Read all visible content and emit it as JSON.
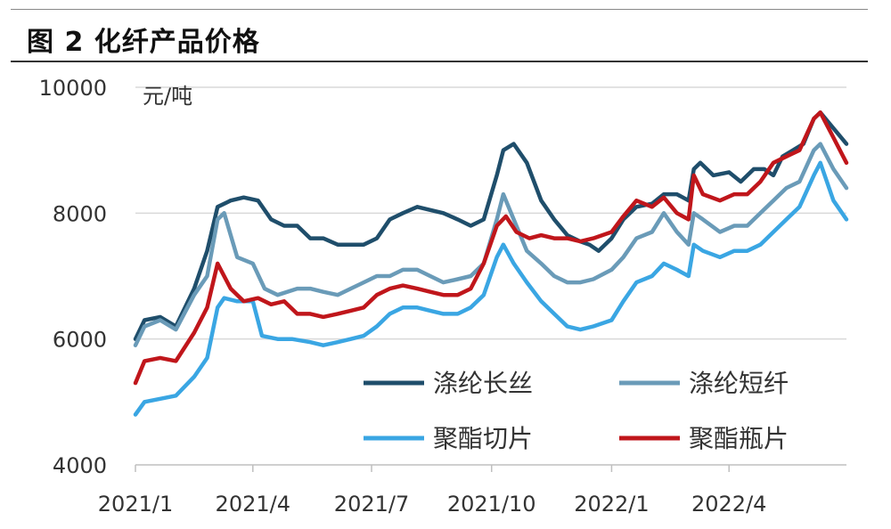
{
  "figure": {
    "title": "图 2  化纤产品价格"
  },
  "chart_data": {
    "type": "line",
    "title": "",
    "xlabel": "",
    "ylabel": "元/吨",
    "ylim": [
      4000,
      10000
    ],
    "yticks": [
      4000,
      6000,
      8000,
      10000
    ],
    "x_range": [
      "2021-01-01",
      "2022-06-30"
    ],
    "xticks": [
      {
        "date": "2021-01-01",
        "label": "2021/1"
      },
      {
        "date": "2021-04-01",
        "label": "2021/4"
      },
      {
        "date": "2021-07-01",
        "label": "2021/7"
      },
      {
        "date": "2021-10-01",
        "label": "2021/10"
      },
      {
        "date": "2022-01-01",
        "label": "2022/1"
      },
      {
        "date": "2022-04-01",
        "label": "2022/4"
      }
    ],
    "grid": true,
    "legend_position": "bottom-right",
    "series": [
      {
        "name": "涤纶长丝",
        "color": "#1f4e6b",
        "points": [
          [
            "2021-01-01",
            6000
          ],
          [
            "2021-01-08",
            6300
          ],
          [
            "2021-01-20",
            6350
          ],
          [
            "2021-02-01",
            6200
          ],
          [
            "2021-02-15",
            6800
          ],
          [
            "2021-02-25",
            7400
          ],
          [
            "2021-03-05",
            8100
          ],
          [
            "2021-03-15",
            8200
          ],
          [
            "2021-03-25",
            8250
          ],
          [
            "2021-04-05",
            8200
          ],
          [
            "2021-04-15",
            7900
          ],
          [
            "2021-04-25",
            7800
          ],
          [
            "2021-05-05",
            7800
          ],
          [
            "2021-05-15",
            7600
          ],
          [
            "2021-05-25",
            7600
          ],
          [
            "2021-06-05",
            7500
          ],
          [
            "2021-06-15",
            7500
          ],
          [
            "2021-06-25",
            7500
          ],
          [
            "2021-07-05",
            7600
          ],
          [
            "2021-07-15",
            7900
          ],
          [
            "2021-07-25",
            8000
          ],
          [
            "2021-08-05",
            8100
          ],
          [
            "2021-08-15",
            8050
          ],
          [
            "2021-08-25",
            8000
          ],
          [
            "2021-09-05",
            7900
          ],
          [
            "2021-09-15",
            7800
          ],
          [
            "2021-09-25",
            7900
          ],
          [
            "2021-10-05",
            8600
          ],
          [
            "2021-10-10",
            9000
          ],
          [
            "2021-10-18",
            9100
          ],
          [
            "2021-10-28",
            8800
          ],
          [
            "2021-11-08",
            8200
          ],
          [
            "2021-11-18",
            7900
          ],
          [
            "2021-11-28",
            7650
          ],
          [
            "2021-12-08",
            7550
          ],
          [
            "2021-12-15",
            7500
          ],
          [
            "2021-12-22",
            7400
          ],
          [
            "2022-01-01",
            7600
          ],
          [
            "2022-01-10",
            7900
          ],
          [
            "2022-01-20",
            8100
          ],
          [
            "2022-02-01",
            8150
          ],
          [
            "2022-02-10",
            8300
          ],
          [
            "2022-02-20",
            8300
          ],
          [
            "2022-03-01",
            8200
          ],
          [
            "2022-03-05",
            8700
          ],
          [
            "2022-03-10",
            8800
          ],
          [
            "2022-03-20",
            8600
          ],
          [
            "2022-04-01",
            8650
          ],
          [
            "2022-04-10",
            8500
          ],
          [
            "2022-04-20",
            8700
          ],
          [
            "2022-04-28",
            8700
          ],
          [
            "2022-05-05",
            8600
          ],
          [
            "2022-05-12",
            8900
          ],
          [
            "2022-05-20",
            9000
          ],
          [
            "2022-05-28",
            9100
          ],
          [
            "2022-06-05",
            9500
          ],
          [
            "2022-06-10",
            9600
          ],
          [
            "2022-06-18",
            9400
          ],
          [
            "2022-06-30",
            9100
          ]
        ]
      },
      {
        "name": "涤纶短纤",
        "color": "#6a9bb8",
        "points": [
          [
            "2021-01-01",
            5900
          ],
          [
            "2021-01-08",
            6200
          ],
          [
            "2021-01-20",
            6300
          ],
          [
            "2021-02-01",
            6150
          ],
          [
            "2021-02-15",
            6700
          ],
          [
            "2021-02-25",
            7000
          ],
          [
            "2021-03-05",
            7900
          ],
          [
            "2021-03-10",
            8000
          ],
          [
            "2021-03-20",
            7300
          ],
          [
            "2021-04-01",
            7200
          ],
          [
            "2021-04-10",
            6800
          ],
          [
            "2021-04-20",
            6700
          ],
          [
            "2021-05-05",
            6800
          ],
          [
            "2021-05-15",
            6800
          ],
          [
            "2021-05-25",
            6750
          ],
          [
            "2021-06-05",
            6700
          ],
          [
            "2021-06-15",
            6800
          ],
          [
            "2021-06-25",
            6900
          ],
          [
            "2021-07-05",
            7000
          ],
          [
            "2021-07-15",
            7000
          ],
          [
            "2021-07-25",
            7100
          ],
          [
            "2021-08-05",
            7100
          ],
          [
            "2021-08-15",
            7000
          ],
          [
            "2021-08-25",
            6900
          ],
          [
            "2021-09-05",
            6950
          ],
          [
            "2021-09-15",
            7000
          ],
          [
            "2021-09-25",
            7200
          ],
          [
            "2021-10-05",
            7900
          ],
          [
            "2021-10-10",
            8300
          ],
          [
            "2021-10-18",
            7900
          ],
          [
            "2021-10-28",
            7400
          ],
          [
            "2021-11-08",
            7200
          ],
          [
            "2021-11-18",
            7000
          ],
          [
            "2021-11-28",
            6900
          ],
          [
            "2021-12-08",
            6900
          ],
          [
            "2021-12-18",
            6950
          ],
          [
            "2022-01-01",
            7100
          ],
          [
            "2022-01-10",
            7300
          ],
          [
            "2022-01-20",
            7600
          ],
          [
            "2022-02-01",
            7700
          ],
          [
            "2022-02-10",
            8000
          ],
          [
            "2022-02-20",
            7700
          ],
          [
            "2022-03-01",
            7500
          ],
          [
            "2022-03-05",
            8000
          ],
          [
            "2022-03-12",
            7900
          ],
          [
            "2022-03-25",
            7700
          ],
          [
            "2022-04-05",
            7800
          ],
          [
            "2022-04-15",
            7800
          ],
          [
            "2022-04-25",
            8000
          ],
          [
            "2022-05-05",
            8200
          ],
          [
            "2022-05-15",
            8400
          ],
          [
            "2022-05-25",
            8500
          ],
          [
            "2022-06-05",
            9000
          ],
          [
            "2022-06-10",
            9100
          ],
          [
            "2022-06-20",
            8700
          ],
          [
            "2022-06-30",
            8400
          ]
        ]
      },
      {
        "name": "聚酯切片",
        "color": "#3aa6e3",
        "points": [
          [
            "2021-01-01",
            4800
          ],
          [
            "2021-01-08",
            5000
          ],
          [
            "2021-01-20",
            5050
          ],
          [
            "2021-02-01",
            5100
          ],
          [
            "2021-02-15",
            5400
          ],
          [
            "2021-02-25",
            5700
          ],
          [
            "2021-03-05",
            6500
          ],
          [
            "2021-03-10",
            6650
          ],
          [
            "2021-03-20",
            6600
          ],
          [
            "2021-04-01",
            6600
          ],
          [
            "2021-04-08",
            6050
          ],
          [
            "2021-04-20",
            6000
          ],
          [
            "2021-05-01",
            6000
          ],
          [
            "2021-05-15",
            5950
          ],
          [
            "2021-05-25",
            5900
          ],
          [
            "2021-06-05",
            5950
          ],
          [
            "2021-06-15",
            6000
          ],
          [
            "2021-06-25",
            6050
          ],
          [
            "2021-07-05",
            6200
          ],
          [
            "2021-07-15",
            6400
          ],
          [
            "2021-07-25",
            6500
          ],
          [
            "2021-08-05",
            6500
          ],
          [
            "2021-08-15",
            6450
          ],
          [
            "2021-08-25",
            6400
          ],
          [
            "2021-09-05",
            6400
          ],
          [
            "2021-09-15",
            6500
          ],
          [
            "2021-09-25",
            6700
          ],
          [
            "2021-10-05",
            7300
          ],
          [
            "2021-10-10",
            7500
          ],
          [
            "2021-10-18",
            7200
          ],
          [
            "2021-10-28",
            6900
          ],
          [
            "2021-11-08",
            6600
          ],
          [
            "2021-11-18",
            6400
          ],
          [
            "2021-11-28",
            6200
          ],
          [
            "2021-12-08",
            6150
          ],
          [
            "2021-12-18",
            6200
          ],
          [
            "2022-01-01",
            6300
          ],
          [
            "2022-01-10",
            6600
          ],
          [
            "2022-01-20",
            6900
          ],
          [
            "2022-02-01",
            7000
          ],
          [
            "2022-02-10",
            7200
          ],
          [
            "2022-02-20",
            7100
          ],
          [
            "2022-03-01",
            7000
          ],
          [
            "2022-03-05",
            7500
          ],
          [
            "2022-03-12",
            7400
          ],
          [
            "2022-03-25",
            7300
          ],
          [
            "2022-04-05",
            7400
          ],
          [
            "2022-04-15",
            7400
          ],
          [
            "2022-04-25",
            7500
          ],
          [
            "2022-05-05",
            7700
          ],
          [
            "2022-05-15",
            7900
          ],
          [
            "2022-05-25",
            8100
          ],
          [
            "2022-06-05",
            8600
          ],
          [
            "2022-06-10",
            8800
          ],
          [
            "2022-06-20",
            8200
          ],
          [
            "2022-06-30",
            7900
          ]
        ]
      },
      {
        "name": "聚酯瓶片",
        "color": "#c0161b",
        "points": [
          [
            "2021-01-01",
            5300
          ],
          [
            "2021-01-08",
            5650
          ],
          [
            "2021-01-20",
            5700
          ],
          [
            "2021-02-01",
            5650
          ],
          [
            "2021-02-15",
            6100
          ],
          [
            "2021-02-25",
            6500
          ],
          [
            "2021-03-05",
            7200
          ],
          [
            "2021-03-15",
            6800
          ],
          [
            "2021-03-25",
            6600
          ],
          [
            "2021-04-05",
            6650
          ],
          [
            "2021-04-15",
            6550
          ],
          [
            "2021-04-25",
            6600
          ],
          [
            "2021-05-05",
            6400
          ],
          [
            "2021-05-15",
            6400
          ],
          [
            "2021-05-25",
            6350
          ],
          [
            "2021-06-05",
            6400
          ],
          [
            "2021-06-15",
            6450
          ],
          [
            "2021-06-25",
            6500
          ],
          [
            "2021-07-05",
            6700
          ],
          [
            "2021-07-15",
            6800
          ],
          [
            "2021-07-25",
            6850
          ],
          [
            "2021-08-05",
            6800
          ],
          [
            "2021-08-15",
            6750
          ],
          [
            "2021-08-25",
            6700
          ],
          [
            "2021-09-05",
            6700
          ],
          [
            "2021-09-15",
            6800
          ],
          [
            "2021-09-25",
            7200
          ],
          [
            "2021-10-05",
            7800
          ],
          [
            "2021-10-12",
            7950
          ],
          [
            "2021-10-20",
            7700
          ],
          [
            "2021-10-30",
            7600
          ],
          [
            "2021-11-08",
            7650
          ],
          [
            "2021-11-18",
            7600
          ],
          [
            "2021-11-28",
            7600
          ],
          [
            "2021-12-08",
            7550
          ],
          [
            "2021-12-18",
            7600
          ],
          [
            "2022-01-01",
            7700
          ],
          [
            "2022-01-10",
            7950
          ],
          [
            "2022-01-20",
            8200
          ],
          [
            "2022-02-01",
            8100
          ],
          [
            "2022-02-10",
            8250
          ],
          [
            "2022-02-20",
            8000
          ],
          [
            "2022-03-01",
            7900
          ],
          [
            "2022-03-05",
            8600
          ],
          [
            "2022-03-12",
            8300
          ],
          [
            "2022-03-25",
            8200
          ],
          [
            "2022-04-05",
            8300
          ],
          [
            "2022-04-15",
            8300
          ],
          [
            "2022-04-25",
            8500
          ],
          [
            "2022-05-05",
            8800
          ],
          [
            "2022-05-15",
            8900
          ],
          [
            "2022-05-25",
            9000
          ],
          [
            "2022-06-05",
            9500
          ],
          [
            "2022-06-10",
            9600
          ],
          [
            "2022-06-20",
            9200
          ],
          [
            "2022-06-30",
            8800
          ]
        ]
      }
    ]
  }
}
